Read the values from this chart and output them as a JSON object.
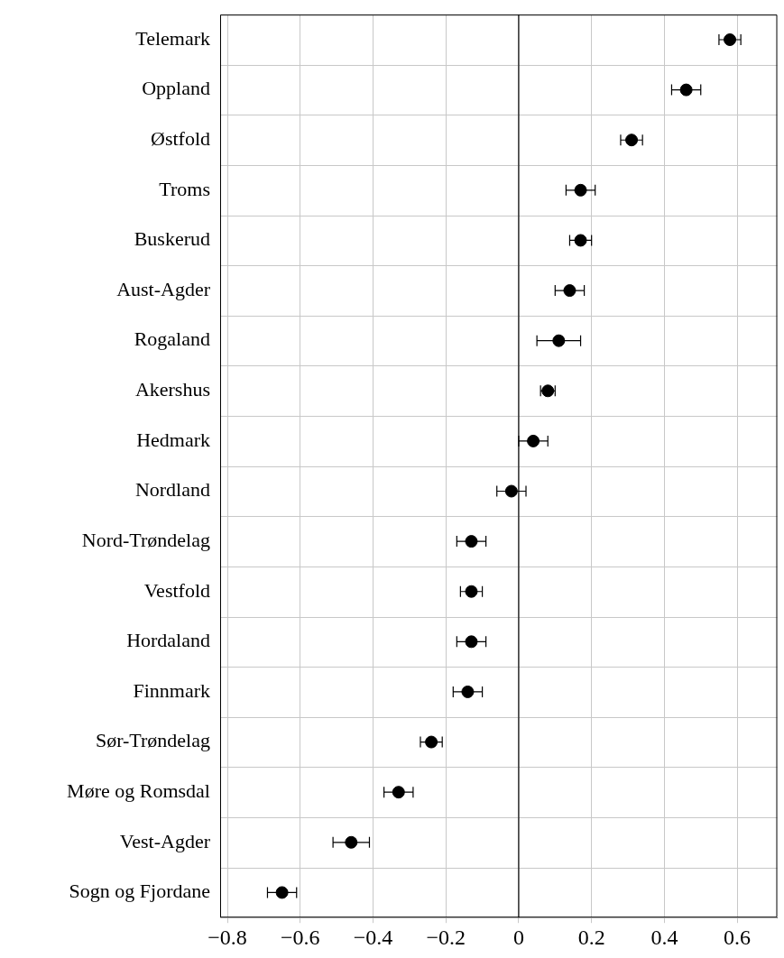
{
  "chart_data": {
    "type": "scatter",
    "orientation": "horizontal",
    "categories": [
      "Telemark",
      "Oppland",
      "Østfold",
      "Troms",
      "Buskerud",
      "Aust-Agder",
      "Rogaland",
      "Akershus",
      "Hedmark",
      "Nordland",
      "Nord-Trøndelag",
      "Vestfold",
      "Hordaland",
      "Finnmark",
      "Sør-Trøndelag",
      "Møre og Romsdal",
      "Vest-Agder",
      "Sogn og Fjordane"
    ],
    "series": [
      {
        "color": "#000000",
        "values": [
          0.58,
          0.46,
          0.31,
          0.17,
          0.17,
          0.14,
          0.11,
          0.08,
          0.04,
          -0.02,
          -0.13,
          -0.13,
          -0.13,
          -0.14,
          -0.24,
          -0.33,
          -0.46,
          -0.65
        ],
        "errors": [
          0.03,
          0.04,
          0.03,
          0.04,
          0.03,
          0.04,
          0.06,
          0.02,
          0.04,
          0.04,
          0.04,
          0.03,
          0.04,
          0.04,
          0.03,
          0.04,
          0.05,
          0.04
        ]
      }
    ],
    "xlim": [
      -0.82,
      0.71
    ],
    "xticks": [
      {
        "value": -0.8,
        "label": "−0.8"
      },
      {
        "value": -0.6,
        "label": "−0.6"
      },
      {
        "value": -0.4,
        "label": "−0.4"
      },
      {
        "value": -0.2,
        "label": "−0.2"
      },
      0,
      0.2,
      0.4,
      0.6
    ],
    "ref_lines": [
      {
        "axis": "x",
        "value": 0,
        "color": "#000000"
      }
    ],
    "grid": true,
    "marker": "circle",
    "legend": false
  }
}
